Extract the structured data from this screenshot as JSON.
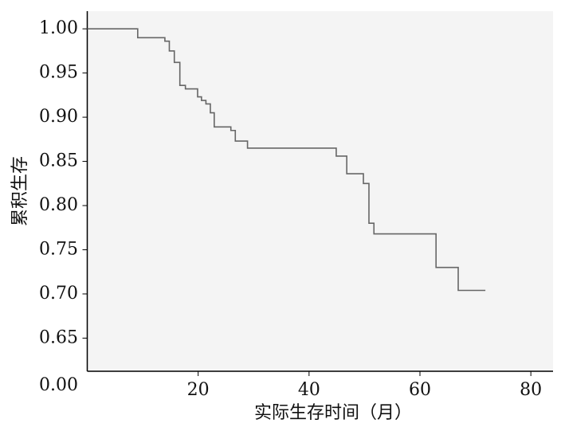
{
  "chart_data": {
    "type": "step",
    "y_label": "累积生存",
    "x_label": "实际生存时间（月）",
    "xlim": [
      0,
      84
    ],
    "ylim": [
      0.6125,
      1.02
    ],
    "xticks": [
      20,
      40,
      60,
      80
    ],
    "yticks": [
      {
        "value": 1.0,
        "label": "1.00"
      },
      0.95,
      {
        "value": 0.9,
        "label": "0.90"
      },
      0.85,
      {
        "value": 0.8,
        "label": "0.80"
      },
      0.75,
      {
        "value": 0.7,
        "label": "0.70"
      },
      0.65
    ],
    "ybreak_label": "0.00",
    "background": "#f4f4f4",
    "series": [
      {
        "color": "#666666",
        "x": [
          0,
          9.1,
          14.0,
          14.8,
          15.7,
          16.7,
          17.7,
          19.9,
          20.6,
          21.4,
          22.2,
          22.9,
          25.9,
          26.7,
          28.9,
          44.9,
          46.8,
          49.8,
          50.8,
          51.7,
          62.9,
          66.9,
          71.8
        ],
        "values": [
          1.0,
          0.99,
          0.986,
          0.975,
          0.962,
          0.936,
          0.932,
          0.923,
          0.919,
          0.915,
          0.905,
          0.889,
          0.885,
          0.873,
          0.865,
          0.856,
          0.836,
          0.825,
          0.78,
          0.768,
          0.73,
          0.704,
          0.704
        ]
      }
    ]
  }
}
